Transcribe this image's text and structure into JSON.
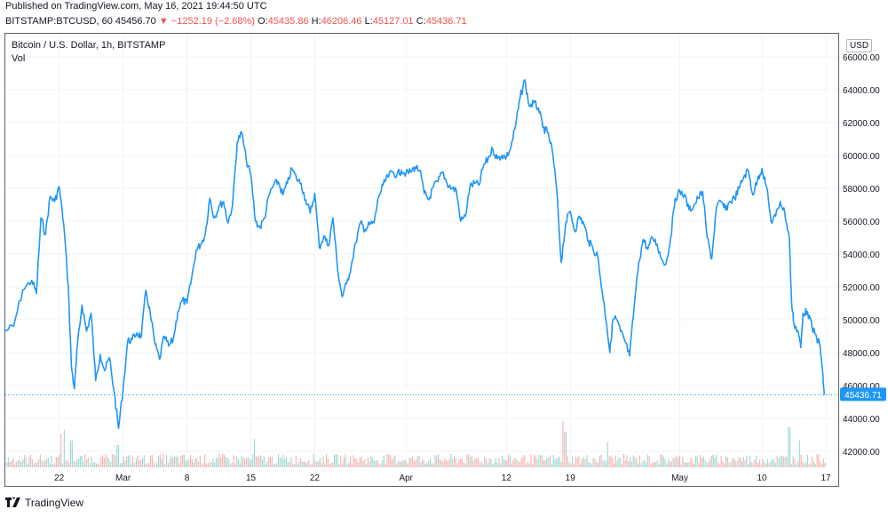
{
  "header": {
    "published": "Published on TradingView.com, May 16, 2021 19:44:50 UTC",
    "symbol": "BITSTAMP:BTCUSD, 60",
    "last": "45456.70",
    "change": "−1252.19 (−2.68%)",
    "o_label": "O:",
    "o_value": "45435.86",
    "h_label": "H:",
    "h_value": "46206.46",
    "l_label": "L:",
    "l_value": "45127.01",
    "c_label": "C:",
    "c_value": "45436.71"
  },
  "chart_title": "Bitcoin / U.S. Dollar, 1h, BITSTAMP",
  "volume_label": "Vol",
  "currency": "USD",
  "footer": {
    "brand": "TradingView"
  },
  "colors": {
    "line": "#2196f3",
    "up": "#26a69a",
    "down": "#ef5350",
    "grid": "#f0f3fa",
    "axis_text": "#131722"
  },
  "chart_data": {
    "type": "line",
    "title": "Bitcoin / U.S. Dollar, 1h, BITSTAMP",
    "series": [
      {
        "name": "BTCUSD"
      }
    ],
    "x_start": "2021-02-16",
    "x_end": "2021-05-17",
    "ylim": [
      41000,
      66500
    ],
    "y_ticks": [
      42000,
      44000,
      46000,
      48000,
      50000,
      52000,
      54000,
      56000,
      58000,
      60000,
      62000,
      64000,
      66000
    ],
    "y_tick_labels": [
      "42000.00",
      "44000.00",
      "46000.00",
      "48000.00",
      "50000.00",
      "52000.00",
      "54000.00",
      "56000.00",
      "58000.00",
      "60000.00",
      "62000.00",
      "64000.00",
      "66000.00"
    ],
    "x_ticks": [
      {
        "date": "2021-02-22",
        "label": "22"
      },
      {
        "date": "2021-03-01",
        "label": "Mar"
      },
      {
        "date": "2021-03-08",
        "label": "8"
      },
      {
        "date": "2021-03-15",
        "label": "15"
      },
      {
        "date": "2021-03-22",
        "label": "22"
      },
      {
        "date": "2021-04-01",
        "label": "Apr"
      },
      {
        "date": "2021-04-12",
        "label": "12"
      },
      {
        "date": "2021-04-19",
        "label": "19"
      },
      {
        "date": "2021-05-01",
        "label": "May"
      },
      {
        "date": "2021-05-10",
        "label": "10"
      },
      {
        "date": "2021-05-17",
        "label": "17"
      }
    ],
    "last_price": 45436.71,
    "last_price_label": "45436.71",
    "grid": true,
    "points": [
      [
        "2021-02-16",
        49300
      ],
      [
        "2021-02-17",
        49600
      ],
      [
        "2021-02-18",
        51800
      ],
      [
        "2021-02-19",
        52400
      ],
      [
        "2021-02-19T12",
        51600
      ],
      [
        "2021-02-20",
        56200
      ],
      [
        "2021-02-20T12",
        55200
      ],
      [
        "2021-02-21",
        57500
      ],
      [
        "2021-02-21T12",
        57200
      ],
      [
        "2021-02-22",
        58100
      ],
      [
        "2021-02-22T12",
        55800
      ],
      [
        "2021-02-23",
        52000
      ],
      [
        "2021-02-23T08",
        47200
      ],
      [
        "2021-02-23T16",
        45800
      ],
      [
        "2021-02-24",
        48500
      ],
      [
        "2021-02-24T12",
        50900
      ],
      [
        "2021-02-25",
        49300
      ],
      [
        "2021-02-25T12",
        50400
      ],
      [
        "2021-02-26",
        46300
      ],
      [
        "2021-02-26T12",
        47900
      ],
      [
        "2021-02-27",
        46900
      ],
      [
        "2021-02-27T12",
        47700
      ],
      [
        "2021-02-28",
        45700
      ],
      [
        "2021-02-28T12",
        43400
      ],
      [
        "2021-03-01",
        45800
      ],
      [
        "2021-03-01T12",
        48700
      ],
      [
        "2021-03-02",
        48800
      ],
      [
        "2021-03-02T12",
        49200
      ],
      [
        "2021-03-03",
        49000
      ],
      [
        "2021-03-03T12",
        51800
      ],
      [
        "2021-03-04",
        50300
      ],
      [
        "2021-03-04T12",
        48500
      ],
      [
        "2021-03-05",
        47600
      ],
      [
        "2021-03-05T12",
        49000
      ],
      [
        "2021-03-06",
        48400
      ],
      [
        "2021-03-06T12",
        48800
      ],
      [
        "2021-03-07",
        50500
      ],
      [
        "2021-03-07T12",
        51200
      ],
      [
        "2021-03-08",
        51000
      ],
      [
        "2021-03-08T12",
        52500
      ],
      [
        "2021-03-09",
        54200
      ],
      [
        "2021-03-09T12",
        54600
      ],
      [
        "2021-03-10",
        55200
      ],
      [
        "2021-03-10T12",
        57400
      ],
      [
        "2021-03-11",
        56200
      ],
      [
        "2021-03-11T12",
        56900
      ],
      [
        "2021-03-12",
        57200
      ],
      [
        "2021-03-12T12",
        55900
      ],
      [
        "2021-03-13",
        57000
      ],
      [
        "2021-03-13T12",
        60800
      ],
      [
        "2021-03-14",
        61400
      ],
      [
        "2021-03-14T12",
        59700
      ],
      [
        "2021-03-15",
        58800
      ],
      [
        "2021-03-15T12",
        56000
      ],
      [
        "2021-03-16",
        55600
      ],
      [
        "2021-03-16T12",
        56200
      ],
      [
        "2021-03-17",
        57600
      ],
      [
        "2021-03-17T12",
        58200
      ],
      [
        "2021-03-18",
        58400
      ],
      [
        "2021-03-18T12",
        57600
      ],
      [
        "2021-03-19",
        58300
      ],
      [
        "2021-03-19T12",
        59200
      ],
      [
        "2021-03-20",
        58600
      ],
      [
        "2021-03-20T12",
        58300
      ],
      [
        "2021-03-21",
        57300
      ],
      [
        "2021-03-21T12",
        56500
      ],
      [
        "2021-03-22",
        57700
      ],
      [
        "2021-03-22T12",
        54400
      ],
      [
        "2021-03-23",
        55100
      ],
      [
        "2021-03-23T12",
        54500
      ],
      [
        "2021-03-24",
        56200
      ],
      [
        "2021-03-24T12",
        53100
      ],
      [
        "2021-03-25",
        51400
      ],
      [
        "2021-03-25T12",
        52200
      ],
      [
        "2021-03-26",
        53300
      ],
      [
        "2021-03-26T12",
        54700
      ],
      [
        "2021-03-27",
        55900
      ],
      [
        "2021-03-27T12",
        55500
      ],
      [
        "2021-03-28",
        55800
      ],
      [
        "2021-03-28T12",
        55900
      ],
      [
        "2021-03-29",
        57500
      ],
      [
        "2021-03-29T12",
        58200
      ],
      [
        "2021-03-30",
        58700
      ],
      [
        "2021-03-30T12",
        59000
      ],
      [
        "2021-03-31",
        58800
      ],
      [
        "2021-03-31T12",
        59100
      ],
      [
        "2021-04-01",
        58900
      ],
      [
        "2021-04-01T12",
        59000
      ],
      [
        "2021-04-02",
        59300
      ],
      [
        "2021-04-02T12",
        59100
      ],
      [
        "2021-04-03",
        57700
      ],
      [
        "2021-04-03T12",
        57300
      ],
      [
        "2021-04-04",
        58100
      ],
      [
        "2021-04-04T12",
        58400
      ],
      [
        "2021-04-05",
        59000
      ],
      [
        "2021-04-05T12",
        58300
      ],
      [
        "2021-04-06",
        58000
      ],
      [
        "2021-04-06T12",
        57900
      ],
      [
        "2021-04-07",
        56000
      ],
      [
        "2021-04-07T12",
        56300
      ],
      [
        "2021-04-08",
        58100
      ],
      [
        "2021-04-08T12",
        58300
      ],
      [
        "2021-04-09",
        58200
      ],
      [
        "2021-04-09T12",
        59400
      ],
      [
        "2021-04-10",
        59800
      ],
      [
        "2021-04-10T12",
        60400
      ],
      [
        "2021-04-11",
        59800
      ],
      [
        "2021-04-11T12",
        60000
      ],
      [
        "2021-04-12",
        59900
      ],
      [
        "2021-04-12T12",
        60500
      ],
      [
        "2021-04-13",
        61800
      ],
      [
        "2021-04-13T12",
        63500
      ],
      [
        "2021-04-14",
        64600
      ],
      [
        "2021-04-14T12",
        63000
      ],
      [
        "2021-04-15",
        63200
      ],
      [
        "2021-04-15T12",
        62900
      ],
      [
        "2021-04-16",
        61700
      ],
      [
        "2021-04-16T12",
        61400
      ],
      [
        "2021-04-17",
        60400
      ],
      [
        "2021-04-17T12",
        58000
      ],
      [
        "2021-04-18",
        53500
      ],
      [
        "2021-04-18T12",
        55900
      ],
      [
        "2021-04-19",
        56600
      ],
      [
        "2021-04-19T12",
        55400
      ],
      [
        "2021-04-20",
        56300
      ],
      [
        "2021-04-20T12",
        55800
      ],
      [
        "2021-04-21",
        54800
      ],
      [
        "2021-04-21T12",
        54300
      ],
      [
        "2021-04-22",
        53900
      ],
      [
        "2021-04-22T12",
        51700
      ],
      [
        "2021-04-23",
        49700
      ],
      [
        "2021-04-23T08",
        48000
      ],
      [
        "2021-04-23T16",
        50000
      ],
      [
        "2021-04-24",
        50100
      ],
      [
        "2021-04-24T12",
        49300
      ],
      [
        "2021-04-25",
        48700
      ],
      [
        "2021-04-25T12",
        47800
      ],
      [
        "2021-04-26",
        50800
      ],
      [
        "2021-04-26T12",
        53500
      ],
      [
        "2021-04-27",
        54900
      ],
      [
        "2021-04-27T12",
        54300
      ],
      [
        "2021-04-28",
        55000
      ],
      [
        "2021-04-28T12",
        54600
      ],
      [
        "2021-04-29",
        53700
      ],
      [
        "2021-04-29T12",
        53400
      ],
      [
        "2021-04-30",
        55000
      ],
      [
        "2021-04-30T12",
        57400
      ],
      [
        "2021-05-01",
        57800
      ],
      [
        "2021-05-01T12",
        57600
      ],
      [
        "2021-05-02",
        56700
      ],
      [
        "2021-05-02T12",
        56900
      ],
      [
        "2021-05-03",
        57400
      ],
      [
        "2021-05-03T12",
        57800
      ],
      [
        "2021-05-04",
        55000
      ],
      [
        "2021-05-04T12",
        53700
      ],
      [
        "2021-05-05",
        56800
      ],
      [
        "2021-05-05T12",
        57200
      ],
      [
        "2021-05-06",
        56700
      ],
      [
        "2021-05-06T12",
        57200
      ],
      [
        "2021-05-07",
        57400
      ],
      [
        "2021-05-07T12",
        58000
      ],
      [
        "2021-05-08",
        58700
      ],
      [
        "2021-05-08T12",
        59100
      ],
      [
        "2021-05-09",
        57600
      ],
      [
        "2021-05-09T12",
        58500
      ],
      [
        "2021-05-10",
        59200
      ],
      [
        "2021-05-10T12",
        58100
      ],
      [
        "2021-05-11",
        56000
      ],
      [
        "2021-05-11T12",
        56300
      ],
      [
        "2021-05-12",
        57200
      ],
      [
        "2021-05-12T12",
        56500
      ],
      [
        "2021-05-13",
        55000
      ],
      [
        "2021-05-13T06",
        51000
      ],
      [
        "2021-05-13T12",
        49800
      ],
      [
        "2021-05-14",
        49200
      ],
      [
        "2021-05-14T06",
        48300
      ],
      [
        "2021-05-14T12",
        50400
      ],
      [
        "2021-05-15",
        50500
      ],
      [
        "2021-05-15T12",
        49500
      ],
      [
        "2021-05-16",
        48900
      ],
      [
        "2021-05-16T08",
        48500
      ],
      [
        "2021-05-16T14",
        47200
      ],
      [
        "2021-05-16T20",
        45437
      ]
    ]
  }
}
